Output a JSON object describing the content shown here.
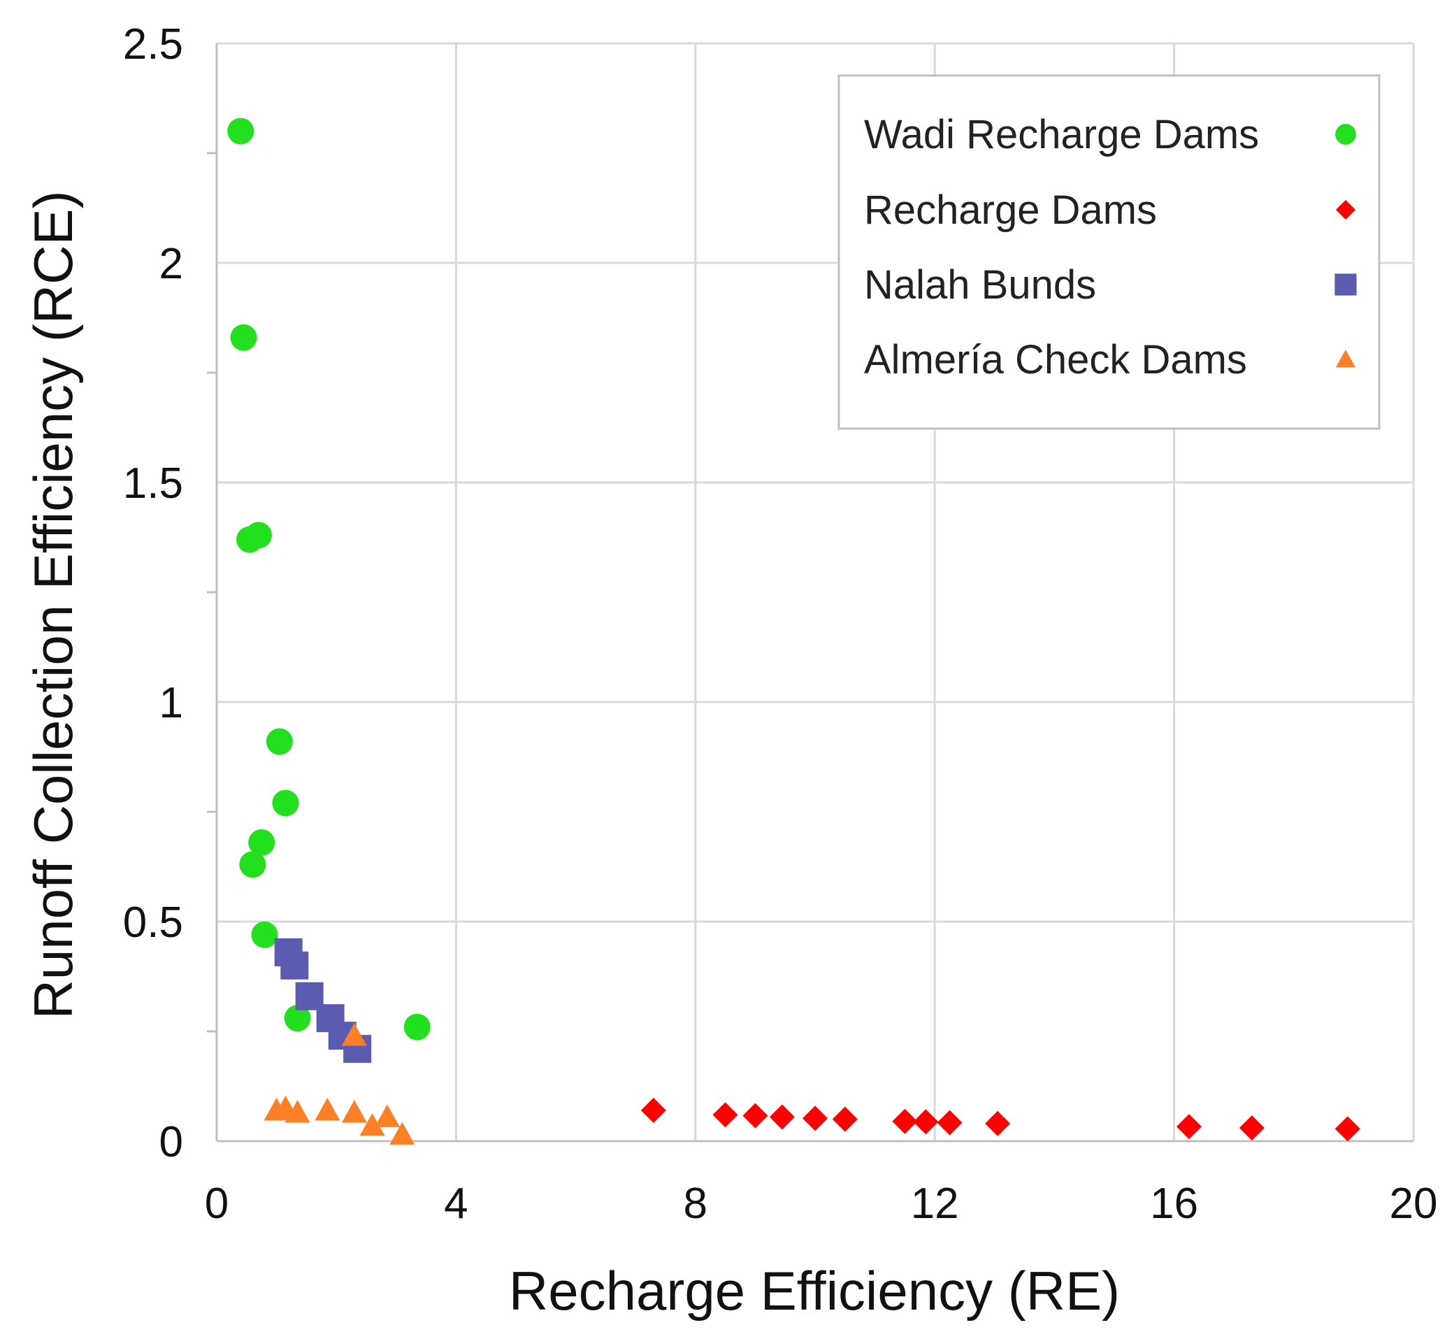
{
  "chart_data": {
    "type": "scatter",
    "title": "",
    "xlabel": "Recharge Efficiency (RE)",
    "ylabel": "Runoff Collection Efficiency (RCE)",
    "xlim": [
      0,
      20
    ],
    "ylim": [
      0,
      2.5
    ],
    "xticks": [
      0,
      4,
      8,
      12,
      16,
      20
    ],
    "xtick_labels": [
      "0",
      "4",
      "8",
      "12",
      "16",
      "20"
    ],
    "yticks": [
      0,
      0.5,
      1,
      1.5,
      2,
      2.5
    ],
    "ytick_labels": [
      "0",
      "0.5",
      "1",
      "1.5",
      "2",
      "2.5"
    ],
    "grid": true,
    "legend_position": "top-right",
    "series": [
      {
        "name": "Wadi Recharge Dams",
        "marker": "circle",
        "color": "#22e01e",
        "points": [
          [
            0.4,
            2.3
          ],
          [
            0.45,
            1.83
          ],
          [
            0.55,
            1.37
          ],
          [
            0.7,
            1.38
          ],
          [
            1.05,
            0.91
          ],
          [
            1.15,
            0.77
          ],
          [
            0.75,
            0.68
          ],
          [
            0.6,
            0.63
          ],
          [
            0.8,
            0.47
          ],
          [
            1.35,
            0.28
          ],
          [
            3.35,
            0.26
          ]
        ]
      },
      {
        "name": "Recharge Dams",
        "marker": "diamond",
        "color": "#ff0000",
        "points": [
          [
            7.3,
            0.07
          ],
          [
            8.5,
            0.06
          ],
          [
            9.0,
            0.058
          ],
          [
            9.45,
            0.055
          ],
          [
            10.0,
            0.052
          ],
          [
            10.5,
            0.05
          ],
          [
            11.5,
            0.045
          ],
          [
            11.85,
            0.044
          ],
          [
            12.25,
            0.042
          ],
          [
            13.05,
            0.04
          ],
          [
            16.25,
            0.033
          ],
          [
            17.3,
            0.03
          ],
          [
            18.9,
            0.028
          ]
        ]
      },
      {
        "name": "Nalah Bunds",
        "marker": "square",
        "color": "#5b5baf",
        "points": [
          [
            1.2,
            0.43
          ],
          [
            1.3,
            0.4
          ],
          [
            1.55,
            0.33
          ],
          [
            1.9,
            0.28
          ],
          [
            2.1,
            0.24
          ],
          [
            2.35,
            0.21
          ]
        ]
      },
      {
        "name": "Almería Check Dams",
        "marker": "triangle",
        "color": "#ff7f27",
        "points": [
          [
            1.0,
            0.07
          ],
          [
            1.15,
            0.075
          ],
          [
            1.35,
            0.065
          ],
          [
            1.85,
            0.07
          ],
          [
            2.3,
            0.065
          ],
          [
            2.3,
            0.24
          ],
          [
            2.6,
            0.035
          ],
          [
            2.85,
            0.055
          ],
          [
            3.1,
            0.015
          ]
        ]
      }
    ]
  }
}
